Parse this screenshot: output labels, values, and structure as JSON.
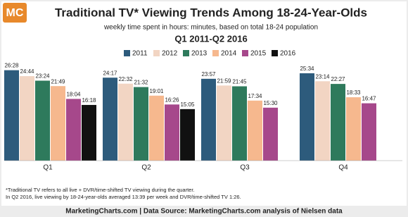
{
  "chart_data": {
    "type": "bar",
    "logo": "MC",
    "title": "Traditional TV* Viewing Trends Among 18-24-Year-Olds",
    "subtitle": "weekly time spent in hours: minutes, based on total 18-24 population",
    "period": "Q1 2011-Q2 2016",
    "categories": [
      "Q1",
      "Q2",
      "Q3",
      "Q4"
    ],
    "series": [
      {
        "name": "2011",
        "color": "#2d5b7c",
        "values": [
          26.4667,
          24.2833,
          23.95,
          25.5667
        ],
        "value_labels": [
          "26:28",
          "24:17",
          "23:57",
          "25:34"
        ]
      },
      {
        "name": "2012",
        "color": "#f2d5c3",
        "values": [
          24.7333,
          22.5333,
          21.9833,
          23.2333
        ],
        "value_labels": [
          "24:44",
          "22:32",
          "21:59",
          "23:14"
        ]
      },
      {
        "name": "2013",
        "color": "#2e7a5c",
        "values": [
          23.4,
          21.5333,
          21.75,
          22.45
        ],
        "value_labels": [
          "23:24",
          "21:32",
          "21:45",
          "22:27"
        ]
      },
      {
        "name": "2014",
        "color": "#f6b88e",
        "values": [
          21.8167,
          19.0167,
          17.5667,
          18.55
        ],
        "value_labels": [
          "21:49",
          "19:01",
          "17:34",
          "18:33"
        ]
      },
      {
        "name": "2015",
        "color": "#a6488b",
        "values": [
          18.0667,
          16.4333,
          15.5,
          16.7833
        ],
        "value_labels": [
          "18:04",
          "16:26",
          "15:30",
          "16:47"
        ]
      },
      {
        "name": "2016",
        "color": "#111111",
        "values": [
          16.3,
          15.0833,
          null,
          null
        ],
        "value_labels": [
          "16:18",
          "15:05",
          null,
          null
        ]
      }
    ],
    "notes": [
      "*Traditional TV refers to all live + DVR/time-shifted TV viewing during the quarter.",
      "In Q2 2016, live viewing by 18-24-year-olds averaged 13:39 per week and DVR/time-shifted TV 1:26."
    ],
    "source": "MarketingCharts.com | Data Source: MarketingCharts.com analysis of Nielsen data"
  }
}
